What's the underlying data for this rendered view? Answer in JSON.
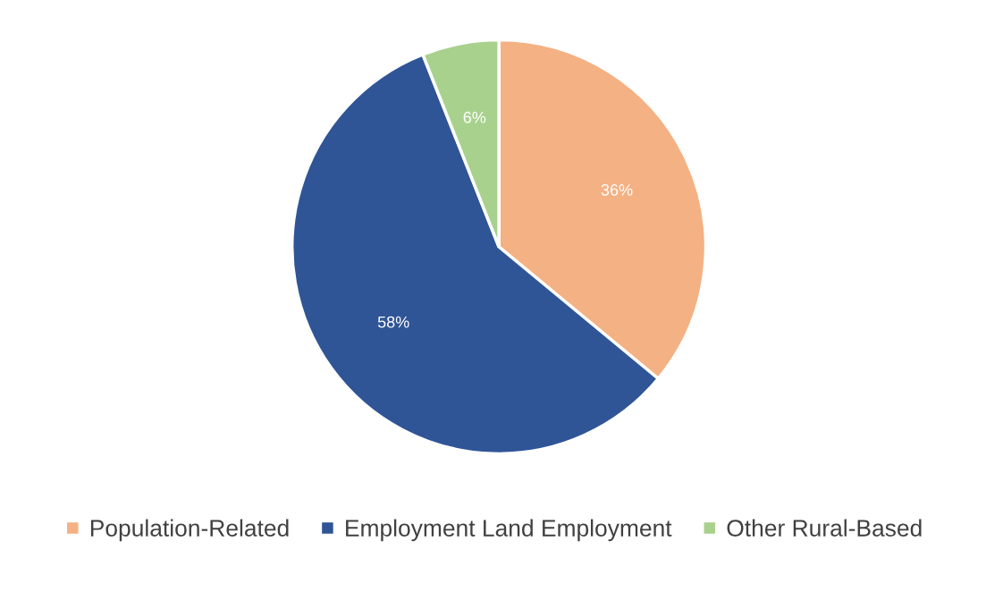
{
  "chart_data": {
    "type": "pie",
    "categories": [
      "Population-Related",
      "Employment Land Employment",
      "Other Rural-Based"
    ],
    "values": [
      36,
      58,
      6
    ],
    "colors": [
      "#f4b183",
      "#2f5597",
      "#a9d18e"
    ],
    "value_labels": [
      "36%",
      "58%",
      "6%"
    ],
    "legend": "bottom"
  }
}
